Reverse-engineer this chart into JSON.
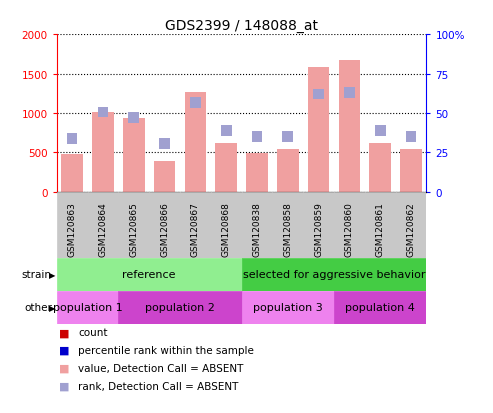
{
  "title": "GDS2399 / 148088_at",
  "samples": [
    "GSM120863",
    "GSM120864",
    "GSM120865",
    "GSM120866",
    "GSM120867",
    "GSM120868",
    "GSM120838",
    "GSM120858",
    "GSM120859",
    "GSM120860",
    "GSM120861",
    "GSM120862"
  ],
  "bar_values": [
    480,
    1010,
    940,
    390,
    1270,
    620,
    490,
    540,
    1580,
    1670,
    620,
    540
  ],
  "rank_values": [
    670,
    1010,
    940,
    610,
    1130,
    780,
    700,
    700,
    1240,
    1260,
    780,
    700
  ],
  "ylim_left": [
    0,
    2000
  ],
  "ylim_right": [
    0,
    100
  ],
  "yticks_left": [
    0,
    500,
    1000,
    1500,
    2000
  ],
  "yticks_right": [
    0,
    25,
    50,
    75,
    100
  ],
  "yticklabels_left": [
    "0",
    "500",
    "1000",
    "1500",
    "2000"
  ],
  "yticklabels_right": [
    "0",
    "25",
    "50",
    "75",
    "100%"
  ],
  "color_bar_absent": "#f0a0a0",
  "color_rank_absent": "#a0a0d0",
  "strain_ref_color": "#90ee90",
  "strain_agg_color": "#44cc44",
  "pop1_color": "#ee82ee",
  "pop2_color": "#cc44cc",
  "pop3_color": "#ee82ee",
  "pop4_color": "#cc44cc",
  "strain_ref_label": "reference",
  "strain_agg_label": "selected for aggressive behavior",
  "pop_labels": [
    "population 1",
    "population 2",
    "population 3",
    "population 4"
  ],
  "legend_items": [
    {
      "label": "count",
      "color": "#cc0000"
    },
    {
      "label": "percentile rank within the sample",
      "color": "#0000cc"
    },
    {
      "label": "value, Detection Call = ABSENT",
      "color": "#f0a0a0"
    },
    {
      "label": "rank, Detection Call = ABSENT",
      "color": "#a0a0d0"
    }
  ],
  "xlabel_bg": "#d0d0d0",
  "bg_color": "#ffffff",
  "bar_width": 0.7
}
